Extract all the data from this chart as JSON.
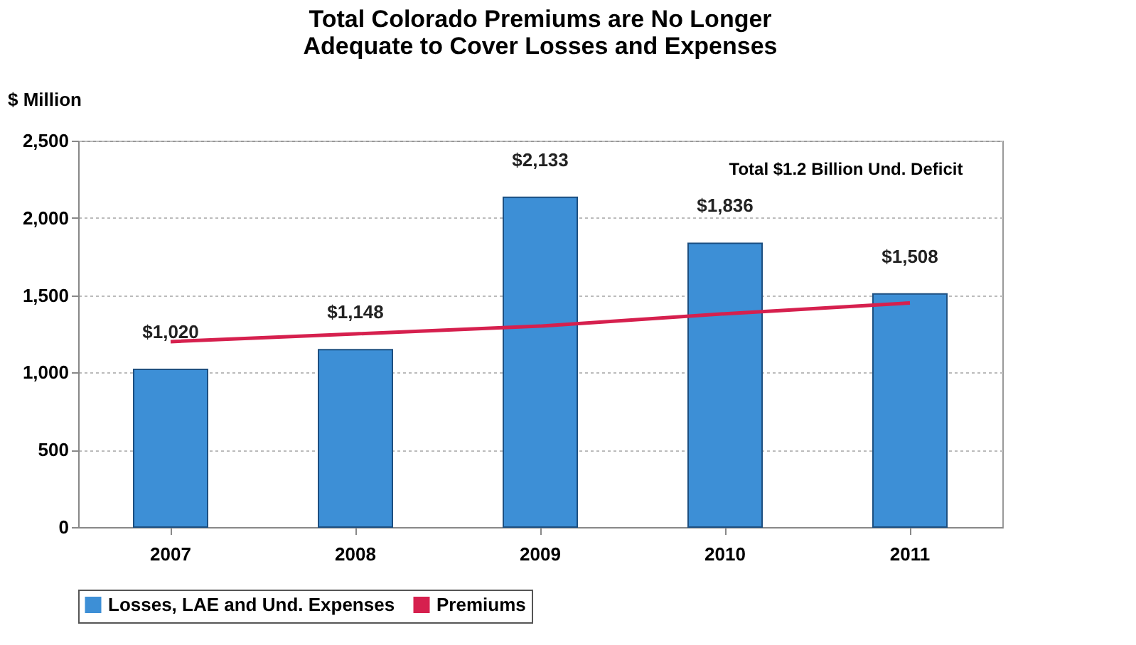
{
  "chart_data": {
    "type": "bar",
    "title": [
      "Total Colorado Premiums are No Longer",
      "Adequate to Cover Losses and Expenses"
    ],
    "ylabel": "$ Million",
    "categories": [
      "2007",
      "2008",
      "2009",
      "2010",
      "2011"
    ],
    "series": [
      {
        "name": "Losses, LAE and Und. Expenses",
        "color": "#3d8fd6",
        "values": [
          1020,
          1148,
          2133,
          1836,
          1508
        ],
        "value_labels": [
          "$1,020",
          "$1,148",
          "$2,133",
          "$1,836",
          "$1,508"
        ]
      },
      {
        "name": "Premiums",
        "type": "line",
        "color": "#d6204e",
        "values": [
          1200,
          1250,
          1300,
          1380,
          1450
        ]
      }
    ],
    "ylim": [
      0,
      2500
    ],
    "yticks": [
      0,
      500,
      {
        "value": 1000,
        "label": "1,000"
      },
      {
        "value": 1500,
        "label": "1,500"
      },
      {
        "value": 2000,
        "label": "2,000"
      },
      {
        "value": 2500,
        "label": "2,500"
      }
    ],
    "grid": "y",
    "legend": "bottom",
    "annotations": [
      "Total $1.2 Billion Und. Deficit"
    ]
  }
}
